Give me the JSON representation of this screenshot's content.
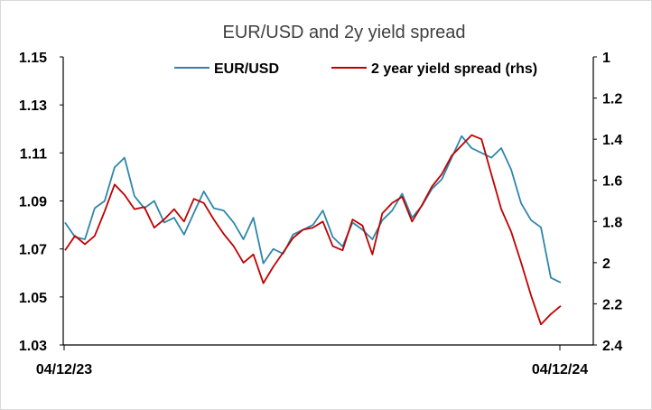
{
  "chart_data": {
    "type": "line",
    "title": "EUR/USD and 2y yield spread",
    "x_ticks": [
      "04/12/23",
      "04/12/24"
    ],
    "y_left": {
      "min": 1.03,
      "max": 1.15,
      "ticks": [
        "1.15",
        "1.13",
        "1.11",
        "1.09",
        "1.07",
        "1.05",
        "1.03"
      ]
    },
    "y_right": {
      "min": 1.0,
      "max": 2.4,
      "inverted": true,
      "ticks": [
        "1",
        "1.2",
        "1.4",
        "1.6",
        "1.8",
        "2",
        "2.2",
        "2.4"
      ]
    },
    "legend": {
      "placement": "top"
    },
    "grid": false,
    "series": [
      {
        "name": "EUR/USD",
        "axis": "left",
        "color": "#2E86AB",
        "x": [
          0,
          0.02,
          0.04,
          0.06,
          0.08,
          0.1,
          0.12,
          0.14,
          0.16,
          0.18,
          0.2,
          0.22,
          0.24,
          0.26,
          0.28,
          0.3,
          0.32,
          0.34,
          0.36,
          0.38,
          0.4,
          0.42,
          0.44,
          0.46,
          0.48,
          0.5,
          0.52,
          0.54,
          0.56,
          0.58,
          0.6,
          0.62,
          0.64,
          0.66,
          0.68,
          0.7,
          0.72,
          0.74,
          0.76,
          0.78,
          0.8,
          0.82,
          0.84,
          0.86,
          0.88,
          0.9,
          0.92,
          0.94,
          0.96,
          0.98,
          1.0
        ],
        "values": [
          1.081,
          1.075,
          1.074,
          1.087,
          1.09,
          1.104,
          1.108,
          1.092,
          1.087,
          1.09,
          1.081,
          1.083,
          1.076,
          1.085,
          1.094,
          1.087,
          1.086,
          1.081,
          1.074,
          1.083,
          1.064,
          1.07,
          1.068,
          1.076,
          1.078,
          1.08,
          1.086,
          1.075,
          1.071,
          1.081,
          1.078,
          1.074,
          1.082,
          1.086,
          1.093,
          1.083,
          1.088,
          1.095,
          1.099,
          1.108,
          1.117,
          1.112,
          1.11,
          1.108,
          1.112,
          1.103,
          1.089,
          1.082,
          1.079,
          1.058,
          1.056
        ]
      },
      {
        "name": "2 year yield spread (rhs)",
        "axis": "right",
        "color": "#C00000",
        "x": [
          0,
          0.02,
          0.04,
          0.06,
          0.08,
          0.1,
          0.12,
          0.14,
          0.16,
          0.18,
          0.2,
          0.22,
          0.24,
          0.26,
          0.28,
          0.3,
          0.32,
          0.34,
          0.36,
          0.38,
          0.4,
          0.42,
          0.44,
          0.46,
          0.48,
          0.5,
          0.52,
          0.54,
          0.56,
          0.58,
          0.6,
          0.62,
          0.64,
          0.66,
          0.68,
          0.7,
          0.72,
          0.74,
          0.76,
          0.78,
          0.8,
          0.82,
          0.84,
          0.86,
          0.88,
          0.9,
          0.92,
          0.94,
          0.96,
          0.98,
          1.0
        ],
        "values": [
          1.94,
          1.87,
          1.91,
          1.87,
          1.75,
          1.62,
          1.67,
          1.74,
          1.73,
          1.83,
          1.79,
          1.74,
          1.8,
          1.69,
          1.71,
          1.79,
          1.86,
          1.92,
          2.0,
          1.96,
          2.1,
          2.02,
          1.95,
          1.88,
          1.84,
          1.83,
          1.8,
          1.92,
          1.94,
          1.79,
          1.82,
          1.96,
          1.76,
          1.71,
          1.68,
          1.8,
          1.72,
          1.63,
          1.57,
          1.48,
          1.43,
          1.38,
          1.4,
          1.57,
          1.74,
          1.85,
          2.0,
          2.16,
          2.3,
          2.25,
          2.21
        ]
      }
    ]
  }
}
